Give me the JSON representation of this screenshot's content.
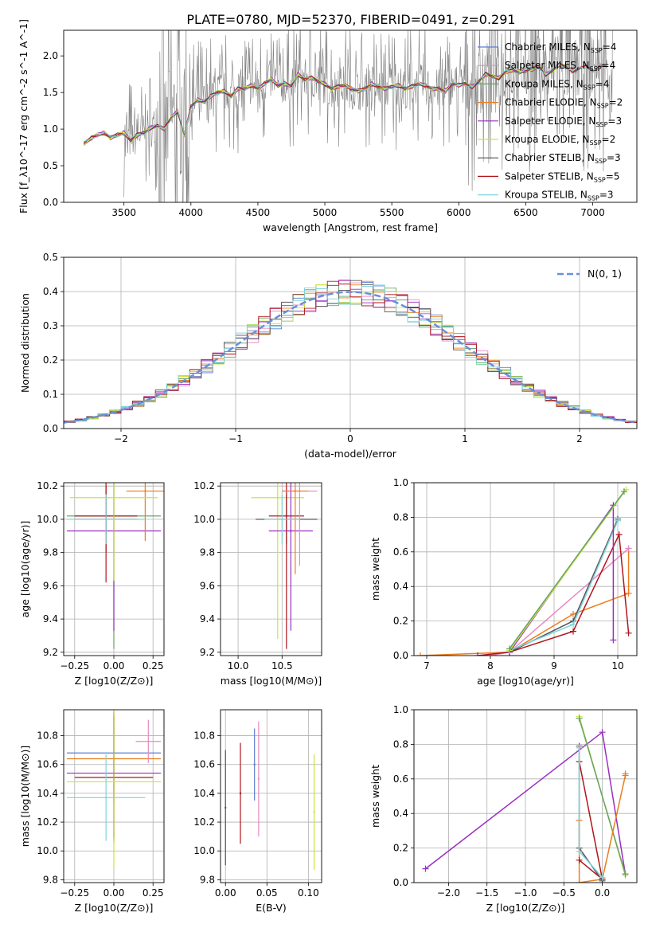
{
  "figure_title": "PLATE=0780, MJD=52370, FIBERID=0491, z=0.291",
  "colors": {
    "chabrier_miles": "#5b7fd1",
    "salpeter_miles": "#e78ac3",
    "kroupa_miles": "#66a266",
    "chabrier_elodie": "#ea7e1d",
    "salpeter_elodie": "#9b2ec0",
    "kroupa_elodie": "#c8e63c",
    "chabrier_stelib": "#555555",
    "salpeter_stelib": "#b0151b",
    "kroupa_stelib": "#7dd3da",
    "data": "#808080",
    "normal": "#6a8fd8",
    "grid": "#b0b0b0"
  },
  "chart_data": [
    {
      "id": "spectrum",
      "type": "line",
      "xlabel": "wavelength [Angstrom, rest frame]",
      "ylabel": "Flux [f_λ10^-17 erg cm^-2 s^-1 A^-1]",
      "xlim": [
        3050,
        7330
      ],
      "ylim": [
        0,
        2.35
      ],
      "xticks": [
        3500,
        4000,
        4500,
        5000,
        5500,
        6000,
        6500,
        7000
      ],
      "yticks": [
        0.0,
        0.5,
        1.0,
        1.5,
        2.0
      ],
      "grid": false,
      "legend_position": "top-right",
      "legend": [
        {
          "label": "Chabrier MILES, N_SSP=4",
          "color_key": "chabrier_miles"
        },
        {
          "label": "Salpeter MILES, N_SSP=4",
          "color_key": "salpeter_miles"
        },
        {
          "label": "Kroupa MILES, N_SSP=4",
          "color_key": "kroupa_miles"
        },
        {
          "label": "Chabrier ELODIE, N_SSP=2",
          "color_key": "chabrier_elodie"
        },
        {
          "label": "Salpeter ELODIE, N_SSP=3",
          "color_key": "salpeter_elodie"
        },
        {
          "label": "Kroupa ELODIE, N_SSP=2",
          "color_key": "kroupa_elodie"
        },
        {
          "label": "Chabrier STELIB, N_SSP=3",
          "color_key": "chabrier_stelib"
        },
        {
          "label": "Salpeter STELIB, N_SSP=5",
          "color_key": "salpeter_stelib"
        },
        {
          "label": "Kroupa STELIB, N_SSP=3",
          "color_key": "kroupa_stelib"
        }
      ],
      "model_x": [
        3200,
        3260,
        3300,
        3350,
        3400,
        3450,
        3500,
        3550,
        3600,
        3650,
        3700,
        3750,
        3800,
        3850,
        3900,
        3950,
        4000,
        4050,
        4100,
        4150,
        4200,
        4250,
        4300,
        4350,
        4400,
        4450,
        4500,
        4550,
        4600,
        4650,
        4700,
        4750,
        4800,
        4850,
        4900,
        4950,
        5000,
        5050,
        5100,
        5150,
        5200,
        5250,
        5300,
        5350,
        5400,
        5450,
        5500,
        5550,
        5600,
        5650,
        5700,
        5750,
        5800,
        5850,
        5900,
        5950,
        6000,
        6050,
        6100,
        6150,
        6200,
        6250,
        6300,
        6350,
        6400,
        6450,
        6500,
        6550,
        6600,
        6650,
        6700,
        6750,
        6800,
        6850,
        6900,
        6950,
        7000,
        7050,
        7100
      ],
      "model_y": [
        0.8,
        0.88,
        0.92,
        0.95,
        0.88,
        0.92,
        0.95,
        0.85,
        0.92,
        0.95,
        1.02,
        1.05,
        1.0,
        1.15,
        1.25,
        0.92,
        1.3,
        1.4,
        1.38,
        1.45,
        1.5,
        1.52,
        1.45,
        1.55,
        1.55,
        1.6,
        1.55,
        1.62,
        1.68,
        1.6,
        1.62,
        1.58,
        1.75,
        1.68,
        1.7,
        1.65,
        1.62,
        1.55,
        1.58,
        1.6,
        1.55,
        1.52,
        1.55,
        1.62,
        1.58,
        1.55,
        1.58,
        1.6,
        1.55,
        1.58,
        1.62,
        1.6,
        1.55,
        1.55,
        1.52,
        1.62,
        1.6,
        1.62,
        1.58,
        1.65,
        1.75,
        1.72,
        1.7,
        1.78,
        1.8,
        1.78,
        1.8,
        1.82,
        1.85,
        1.75,
        1.8,
        1.88,
        1.85,
        1.8,
        1.82,
        1.85,
        1.8,
        1.88,
        1.85
      ]
    },
    {
      "id": "residuals",
      "type": "line",
      "xlabel": "(data-model)/error",
      "ylabel": "Normed distribution",
      "xlim": [
        -2.5,
        2.5
      ],
      "ylim": [
        0,
        0.5
      ],
      "xticks": [
        -2,
        -1,
        0,
        1,
        2
      ],
      "yticks": [
        0.0,
        0.1,
        0.2,
        0.3,
        0.4,
        0.5
      ],
      "grid": true,
      "legend_position": "top-right",
      "legend_label": "N(0, 1)"
    },
    {
      "id": "age_vs_Z",
      "type": "scatter",
      "xlabel": "Z [log10(Z/Z⊙)]",
      "ylabel": "age  [log10(age/yr)]",
      "xlim": [
        -0.32,
        0.32
      ],
      "ylim": [
        9.18,
        10.22
      ],
      "xticks": [
        -0.25,
        0.0,
        0.25
      ],
      "yticks": [
        9.2,
        9.4,
        9.6,
        9.8,
        10.0,
        10.2
      ],
      "grid": true,
      "points": [
        {
          "x": 0.0,
          "y": 10.02,
          "ex": 0.3,
          "ey": 0.8,
          "color_key": "kroupa_miles"
        },
        {
          "x": 0.0,
          "y": 9.93,
          "ex": 0.3,
          "ey": 0.6,
          "color_key": "salpeter_elodie"
        },
        {
          "x": 0.2,
          "y": 10.17,
          "ex": 0.12,
          "ey": 0.3,
          "color_key": "chabrier_elodie"
        },
        {
          "x": -0.05,
          "y": 10.0,
          "ex": 0.2,
          "ey": 0.2,
          "color_key": "chabrier_stelib"
        },
        {
          "x": -0.05,
          "y": 10.02,
          "ex": 0.2,
          "ey": 0.4,
          "color_key": "salpeter_stelib"
        },
        {
          "x": 0.0,
          "y": 10.13,
          "ex": 0.28,
          "ey": 0.5,
          "color_key": "kroupa_elodie"
        },
        {
          "x": -0.05,
          "y": 10.0,
          "ex": 0.25,
          "ey": 0.15,
          "color_key": "kroupa_stelib"
        }
      ]
    },
    {
      "id": "age_vs_mass",
      "type": "scatter",
      "xlabel": "mass [log10(M/M⊙)]",
      "ylabel": "",
      "xlim": [
        9.8,
        10.95
      ],
      "ylim": [
        9.18,
        10.22
      ],
      "xticks": [
        10.0,
        10.5
      ],
      "yticks": [
        9.2,
        9.4,
        9.6,
        9.8,
        10.0,
        10.2
      ],
      "grid": true,
      "points": [
        {
          "x": 10.45,
          "y": 10.13,
          "ex": 0.3,
          "ey": 0.85,
          "color_key": "kroupa_elodie"
        },
        {
          "x": 10.55,
          "y": 10.0,
          "ex": 0.35,
          "ey": 0.15,
          "color_key": "chabrier_stelib"
        },
        {
          "x": 10.55,
          "y": 10.02,
          "ex": 0.2,
          "ey": 0.8,
          "color_key": "salpeter_stelib"
        },
        {
          "x": 10.6,
          "y": 9.93,
          "ex": 0.25,
          "ey": 0.6,
          "color_key": "salpeter_elodie"
        },
        {
          "x": 10.7,
          "y": 10.17,
          "ex": 0.2,
          "ey": 0.45,
          "color_key": "salpeter_miles"
        },
        {
          "x": 10.65,
          "y": 10.17,
          "ex": 0.15,
          "ey": 0.5,
          "color_key": "chabrier_elodie"
        },
        {
          "x": 10.5,
          "y": 10.0,
          "ex": 0.2,
          "ey": 0.15,
          "color_key": "kroupa_stelib"
        }
      ]
    },
    {
      "id": "massweight_vs_age",
      "type": "line",
      "xlabel": "age  [log10(age/yr)]",
      "ylabel": "mass weight",
      "xlim": [
        6.8,
        10.3
      ],
      "ylim": [
        0,
        1.0
      ],
      "xticks": [
        7,
        8,
        9,
        10
      ],
      "yticks": [
        0.0,
        0.2,
        0.4,
        0.6,
        0.8,
        1.0
      ],
      "grid": true,
      "series": [
        {
          "color_key": "chabrier_elodie",
          "x": [
            6.9,
            8.3,
            9.3,
            10.17,
            10.17
          ],
          "y": [
            0.0,
            0.02,
            0.24,
            0.36,
            0.62
          ]
        },
        {
          "color_key": "salpeter_miles",
          "x": [
            8.0,
            8.3,
            10.17
          ],
          "y": [
            0.0,
            0.02,
            0.62
          ]
        },
        {
          "color_key": "salpeter_stelib",
          "x": [
            7.8,
            8.3,
            9.3,
            10.02,
            10.17
          ],
          "y": [
            0.0,
            0.02,
            0.14,
            0.7,
            0.13
          ]
        },
        {
          "color_key": "chabrier_stelib",
          "x": [
            8.3,
            9.3,
            10.0
          ],
          "y": [
            0.02,
            0.2,
            0.79
          ]
        },
        {
          "color_key": "kroupa_stelib",
          "x": [
            8.3,
            9.3,
            10.0
          ],
          "y": [
            0.03,
            0.18,
            0.78
          ]
        },
        {
          "color_key": "salpeter_elodie",
          "x": [
            8.3,
            9.93,
            9.93
          ],
          "y": [
            0.02,
            0.87,
            0.09
          ]
        },
        {
          "color_key": "kroupa_elodie",
          "x": [
            8.3,
            10.13
          ],
          "y": [
            0.03,
            0.96
          ]
        },
        {
          "color_key": "kroupa_miles",
          "x": [
            8.3,
            10.1
          ],
          "y": [
            0.04,
            0.95
          ]
        }
      ]
    },
    {
      "id": "mass_vs_Z",
      "type": "scatter",
      "xlabel": "Z [log10(Z/Z⊙)]",
      "ylabel": "mass [log10(M/M⊙)]",
      "xlim": [
        -0.32,
        0.32
      ],
      "ylim": [
        9.78,
        10.98
      ],
      "xticks": [
        -0.25,
        0.0,
        0.25
      ],
      "yticks": [
        9.8,
        10.0,
        10.2,
        10.4,
        10.6,
        10.8
      ],
      "grid": true,
      "points": [
        {
          "x": 0.0,
          "y": 10.68,
          "ex": 0.3,
          "ey": 0.25,
          "color_key": "chabrier_miles"
        },
        {
          "x": 0.0,
          "y": 10.64,
          "ex": 0.3,
          "ey": 0.3,
          "color_key": "chabrier_elodie"
        },
        {
          "x": 0.0,
          "y": 10.54,
          "ex": 0.3,
          "ey": 0.45,
          "color_key": "salpeter_elodie"
        },
        {
          "x": 0.0,
          "y": 10.51,
          "ex": 0.25,
          "ey": 0.45,
          "color_key": "salpeter_stelib"
        },
        {
          "x": 0.0,
          "y": 10.48,
          "ex": 0.3,
          "ey": 0.6,
          "color_key": "kroupa_elodie"
        },
        {
          "x": -0.05,
          "y": 10.37,
          "ex": 0.25,
          "ey": 0.3,
          "color_key": "kroupa_stelib"
        },
        {
          "x": 0.22,
          "y": 10.76,
          "ex": 0.08,
          "ey": 0.15,
          "color_key": "salpeter_miles"
        }
      ]
    },
    {
      "id": "mass_vs_ebv",
      "type": "scatter",
      "xlabel": "E(B-V)",
      "ylabel": "",
      "xlim": [
        -0.006,
        0.116
      ],
      "ylim": [
        9.78,
        10.98
      ],
      "xticks": [
        0.0,
        0.05,
        0.1
      ],
      "yticks": [
        9.8,
        10.0,
        10.2,
        10.4,
        10.6,
        10.8
      ],
      "grid": true,
      "points": [
        {
          "x": 0.0,
          "y": 10.3,
          "ex": 0,
          "ey": 0.4,
          "color_key": "chabrier_stelib"
        },
        {
          "x": 0.018,
          "y": 10.4,
          "ex": 0,
          "ey": 0.35,
          "color_key": "salpeter_stelib"
        },
        {
          "x": 0.035,
          "y": 10.6,
          "ex": 0,
          "ey": 0.25,
          "color_key": "chabrier_miles"
        },
        {
          "x": 0.04,
          "y": 10.5,
          "ex": 0,
          "ey": 0.4,
          "color_key": "salpeter_miles"
        },
        {
          "x": 0.107,
          "y": 10.27,
          "ex": 0,
          "ey": 0.4,
          "color_key": "kroupa_elodie"
        }
      ]
    },
    {
      "id": "massweight_vs_Z",
      "type": "line",
      "xlabel": "Z [log10(Z/Z⊙)]",
      "ylabel": "mass weight",
      "xlim": [
        -2.45,
        0.45
      ],
      "ylim": [
        0,
        1.0
      ],
      "xticks": [
        -2.0,
        -1.5,
        -1.0,
        -0.5,
        0.0
      ],
      "yticks": [
        0.0,
        0.2,
        0.4,
        0.6,
        0.8,
        1.0
      ],
      "grid": true,
      "series": [
        {
          "color_key": "salpeter_elodie",
          "x": [
            -2.3,
            0.0,
            0.3
          ],
          "y": [
            0.08,
            0.87,
            0.05
          ]
        },
        {
          "color_key": "kroupa_elodie",
          "x": [
            -0.3,
            0.3
          ],
          "y": [
            0.96,
            0.04
          ]
        },
        {
          "color_key": "kroupa_miles",
          "x": [
            -0.3,
            0.3
          ],
          "y": [
            0.95,
            0.05
          ]
        },
        {
          "color_key": "chabrier_elodie",
          "x": [
            -0.3,
            -0.3,
            0.0,
            0.3,
            0.3
          ],
          "y": [
            0.36,
            0.0,
            0.02,
            0.62,
            0.63
          ]
        },
        {
          "color_key": "salpeter_stelib",
          "x": [
            -0.3,
            0.0,
            -0.3
          ],
          "y": [
            0.13,
            0.02,
            0.7
          ]
        },
        {
          "color_key": "chabrier_stelib",
          "x": [
            -0.3,
            -0.3,
            0.0
          ],
          "y": [
            0.79,
            0.2,
            0.01
          ]
        },
        {
          "color_key": "kroupa_stelib",
          "x": [
            -0.3,
            -0.3,
            0.0
          ],
          "y": [
            0.78,
            0.18,
            0.03
          ]
        }
      ]
    }
  ]
}
